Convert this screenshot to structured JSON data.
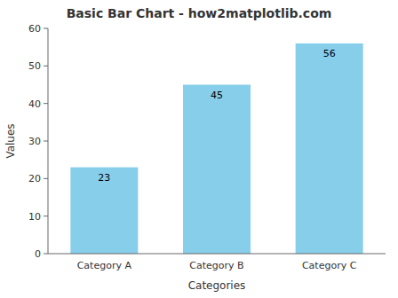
{
  "chart_data": {
    "type": "bar",
    "title": "Basic Bar Chart - how2matplotlib.com",
    "xlabel": "Categories",
    "ylabel": "Values",
    "categories": [
      "Category A",
      "Category B",
      "Category C"
    ],
    "values": [
      23,
      45,
      56
    ],
    "color": "#87CEEB",
    "ylim": [
      0,
      60
    ],
    "yticks": [
      0,
      10,
      20,
      30,
      40,
      50,
      60
    ],
    "grid": false,
    "data_labels": true
  }
}
